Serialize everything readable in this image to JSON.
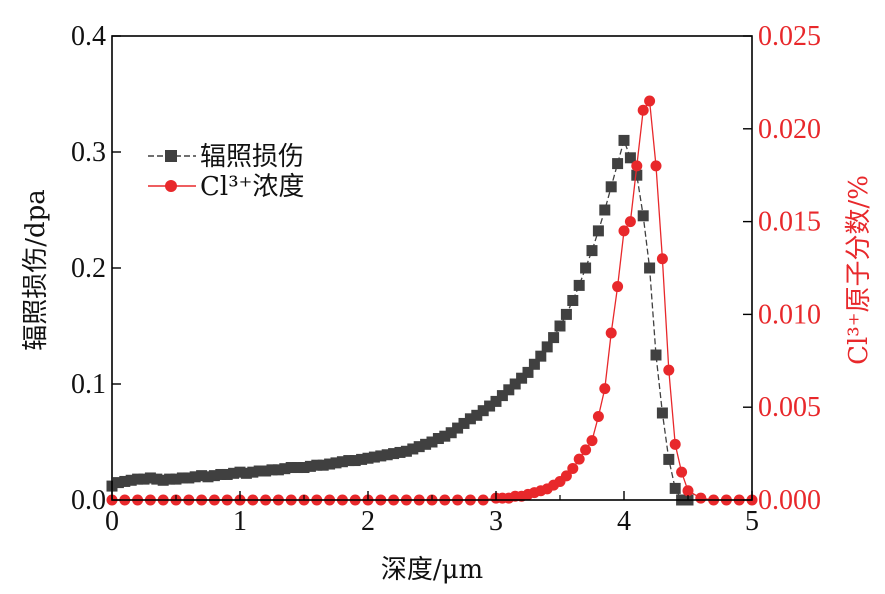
{
  "chart_data": {
    "type": "scatter",
    "xlabel": "深度/μm",
    "ylabel_left": "辐照损伤/dpa",
    "ylabel_right": "Cl³⁺原子分数/%",
    "xlim": [
      0,
      5
    ],
    "ylim_left": [
      0,
      0.4
    ],
    "ylim_right": [
      0,
      0.025
    ],
    "x_ticks": [
      "0",
      "1",
      "2",
      "3",
      "4",
      "5"
    ],
    "y_left_ticks": [
      "0.0",
      "0.1",
      "0.2",
      "0.3",
      "0.4"
    ],
    "y_right_ticks": [
      "0.000",
      "0.005",
      "0.010",
      "0.015",
      "0.020",
      "0.025"
    ],
    "legend_position": "upper-left",
    "colors": {
      "damage": "#404040",
      "concentration": "#e8282b",
      "right_axis": "#e8282b"
    },
    "series": [
      {
        "name": "辐照损伤",
        "axis": "left",
        "marker": "square",
        "x": [
          0.0,
          0.05,
          0.1,
          0.15,
          0.2,
          0.25,
          0.3,
          0.35,
          0.4,
          0.45,
          0.5,
          0.55,
          0.6,
          0.65,
          0.7,
          0.75,
          0.8,
          0.85,
          0.9,
          0.95,
          1.0,
          1.05,
          1.1,
          1.15,
          1.2,
          1.25,
          1.3,
          1.35,
          1.4,
          1.45,
          1.5,
          1.55,
          1.6,
          1.65,
          1.7,
          1.75,
          1.8,
          1.85,
          1.9,
          1.95,
          2.0,
          2.05,
          2.1,
          2.15,
          2.2,
          2.25,
          2.3,
          2.35,
          2.4,
          2.45,
          2.5,
          2.55,
          2.6,
          2.65,
          2.7,
          2.75,
          2.8,
          2.85,
          2.9,
          2.95,
          3.0,
          3.05,
          3.1,
          3.15,
          3.2,
          3.25,
          3.3,
          3.35,
          3.4,
          3.45,
          3.5,
          3.55,
          3.6,
          3.65,
          3.7,
          3.75,
          3.8,
          3.85,
          3.9,
          3.95,
          4.0,
          4.05,
          4.1,
          4.15,
          4.2,
          4.25,
          4.3,
          4.35,
          4.4,
          4.45,
          4.5
        ],
        "values": [
          0.012,
          0.015,
          0.016,
          0.017,
          0.018,
          0.018,
          0.019,
          0.018,
          0.017,
          0.018,
          0.018,
          0.019,
          0.019,
          0.02,
          0.021,
          0.02,
          0.021,
          0.022,
          0.022,
          0.023,
          0.024,
          0.023,
          0.024,
          0.025,
          0.025,
          0.026,
          0.026,
          0.027,
          0.028,
          0.028,
          0.028,
          0.029,
          0.03,
          0.03,
          0.031,
          0.032,
          0.033,
          0.034,
          0.034,
          0.035,
          0.036,
          0.037,
          0.038,
          0.039,
          0.04,
          0.041,
          0.042,
          0.044,
          0.046,
          0.048,
          0.05,
          0.053,
          0.055,
          0.058,
          0.062,
          0.066,
          0.07,
          0.073,
          0.077,
          0.081,
          0.085,
          0.09,
          0.095,
          0.1,
          0.105,
          0.11,
          0.117,
          0.124,
          0.132,
          0.14,
          0.15,
          0.16,
          0.172,
          0.185,
          0.2,
          0.215,
          0.232,
          0.25,
          0.27,
          0.29,
          0.31,
          0.295,
          0.28,
          0.245,
          0.2,
          0.125,
          0.075,
          0.035,
          0.01,
          0.0,
          0.0
        ]
      },
      {
        "name": "Cl³⁺浓度",
        "axis": "right",
        "marker": "circle",
        "x": [
          0.0,
          0.1,
          0.2,
          0.3,
          0.4,
          0.5,
          0.6,
          0.7,
          0.8,
          0.9,
          1.0,
          1.1,
          1.2,
          1.3,
          1.4,
          1.5,
          1.6,
          1.7,
          1.8,
          1.9,
          2.0,
          2.1,
          2.2,
          2.3,
          2.4,
          2.5,
          2.6,
          2.7,
          2.8,
          2.9,
          3.0,
          3.05,
          3.1,
          3.15,
          3.2,
          3.25,
          3.3,
          3.35,
          3.4,
          3.45,
          3.5,
          3.55,
          3.6,
          3.65,
          3.7,
          3.75,
          3.8,
          3.85,
          3.9,
          3.95,
          4.0,
          4.05,
          4.1,
          4.15,
          4.2,
          4.25,
          4.3,
          4.35,
          4.4,
          4.45,
          4.5,
          4.6,
          4.7,
          4.8,
          4.9,
          5.0
        ],
        "values": [
          0.0,
          0.0,
          0.0,
          0.0,
          0.0,
          0.0,
          0.0,
          0.0,
          0.0,
          0.0,
          0.0,
          0.0,
          0.0,
          0.0,
          0.0,
          0.0,
          0.0,
          0.0,
          0.0,
          0.0,
          0.0,
          0.0,
          0.0,
          0.0,
          0.0,
          0.0,
          0.0,
          0.0,
          0.0,
          0.0,
          0.0001,
          0.0001,
          0.0001,
          0.0002,
          0.0002,
          0.0003,
          0.0004,
          0.0005,
          0.0006,
          0.0008,
          0.001,
          0.0013,
          0.0017,
          0.0022,
          0.0027,
          0.0032,
          0.0045,
          0.006,
          0.009,
          0.0115,
          0.0145,
          0.015,
          0.018,
          0.021,
          0.0215,
          0.018,
          0.013,
          0.007,
          0.003,
          0.0015,
          0.0005,
          0.0001,
          0.0,
          0.0,
          0.0,
          0.0
        ]
      }
    ]
  }
}
